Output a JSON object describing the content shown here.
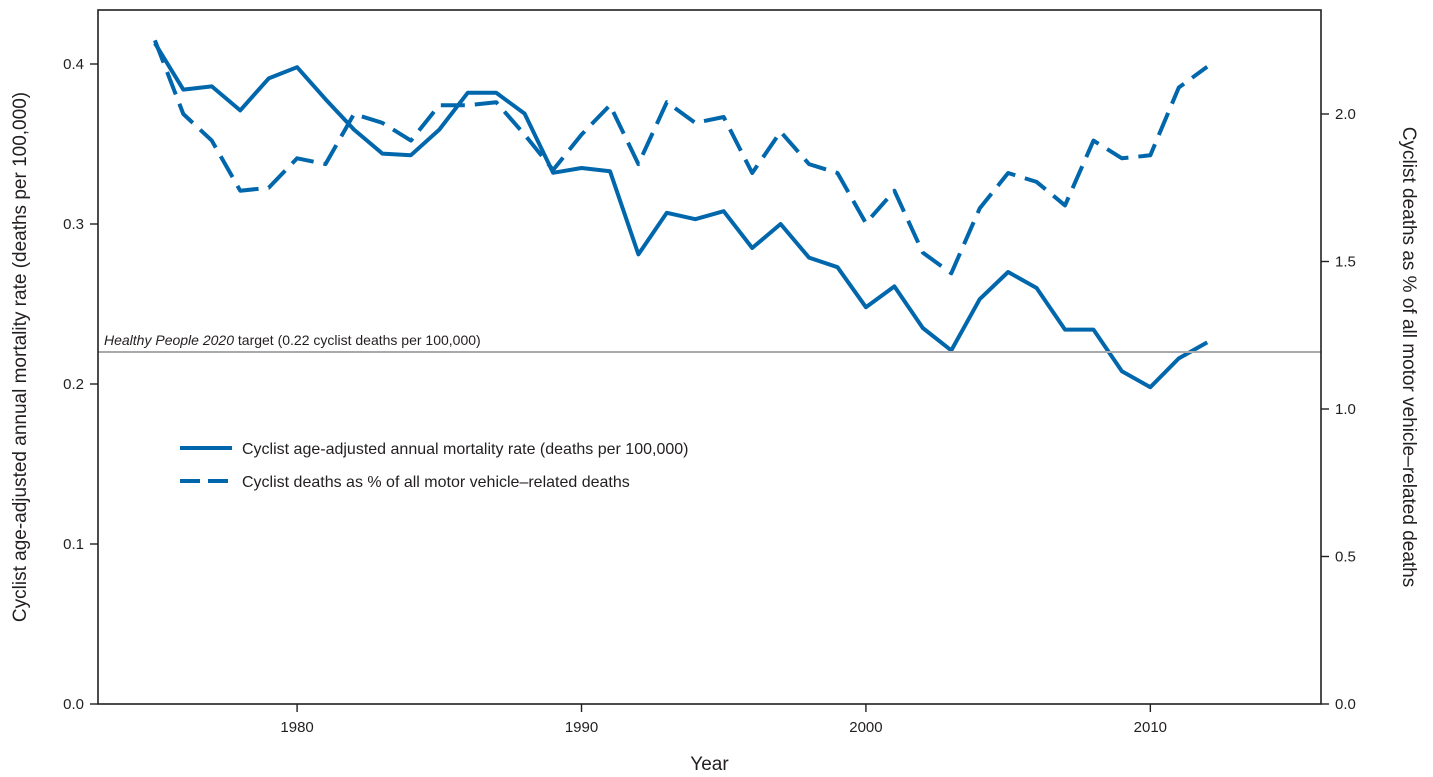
{
  "chart_data": {
    "type": "line",
    "title": "",
    "xlabel": "Year",
    "ylabel_left": "Cyclist age-adjusted annual mortality rate (deaths per 100,000)",
    "ylabel_right": "Cyclist deaths as % of all motor vehicle–related deaths",
    "xlim": [
      1973,
      2016
    ],
    "ylim_left": [
      0.0,
      0.4
    ],
    "ylim_right": [
      0.0,
      2.0
    ],
    "x_ticks": [
      "1980",
      "1990",
      "2000",
      "2010"
    ],
    "y_left_ticks": [
      "0.0",
      "0.1",
      "0.2",
      "0.3",
      "0.4"
    ],
    "y_right_ticks": [
      "0.0",
      "0.5",
      "1.0",
      "1.5",
      "2.0"
    ],
    "grid": false,
    "x": [
      1975,
      1976,
      1977,
      1978,
      1979,
      1980,
      1981,
      1982,
      1983,
      1984,
      1985,
      1986,
      1987,
      1988,
      1989,
      1990,
      1991,
      1992,
      1993,
      1994,
      1995,
      1996,
      1997,
      1998,
      1999,
      2000,
      2001,
      2002,
      2003,
      2004,
      2005,
      2006,
      2007,
      2008,
      2009,
      2010,
      2011,
      2012
    ],
    "series": [
      {
        "name": "Cyclist age-adjusted annual mortality rate (deaths per 100,000)",
        "axis": "left",
        "style": "solid",
        "color": "#0067ac",
        "values": [
          0.413,
          0.384,
          0.386,
          0.371,
          0.391,
          0.398,
          0.378,
          0.359,
          0.344,
          0.343,
          0.359,
          0.382,
          0.382,
          0.369,
          0.332,
          0.335,
          0.333,
          0.281,
          0.307,
          0.303,
          0.308,
          0.285,
          0.3,
          0.279,
          0.273,
          0.248,
          0.261,
          0.235,
          0.221,
          0.253,
          0.27,
          0.26,
          0.234,
          0.234,
          0.208,
          0.198,
          0.216,
          0.226
        ]
      },
      {
        "name": "Cyclist deaths as % of all motor vehicle–related deaths",
        "axis": "right",
        "style": "dashed",
        "color": "#0067ac",
        "values": [
          2.25,
          2.0,
          1.91,
          1.74,
          1.75,
          1.85,
          1.83,
          2.0,
          1.97,
          1.91,
          2.03,
          2.03,
          2.04,
          1.93,
          1.81,
          1.93,
          2.03,
          1.83,
          2.04,
          1.97,
          1.99,
          1.8,
          1.94,
          1.83,
          1.8,
          1.63,
          1.74,
          1.53,
          1.46,
          1.68,
          1.8,
          1.77,
          1.69,
          1.91,
          1.85,
          1.86,
          2.09,
          2.16
        ]
      }
    ],
    "reference_line": {
      "value": 0.22,
      "axis": "left",
      "color": "#a7a9ac",
      "label_italic": "Healthy People 2020",
      "label_rest": " target (0.22 cyclist deaths per 100,000)"
    },
    "legend": {
      "placement": "center-left"
    }
  }
}
